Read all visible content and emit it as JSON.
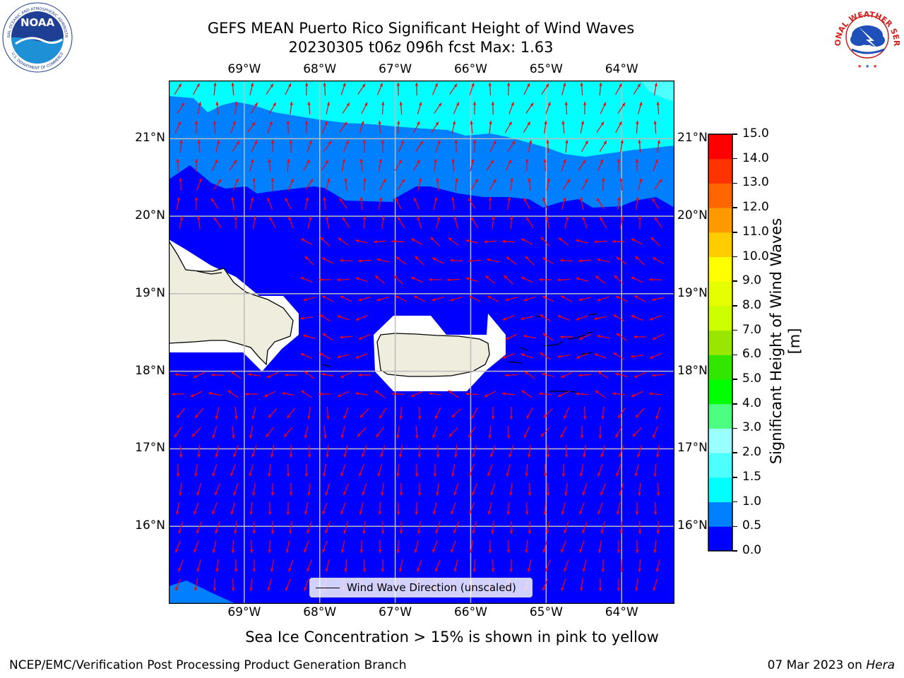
{
  "title": {
    "line1": "GEFS MEAN Puerto Rico Significant Height of Wind Waves",
    "line2": "20230305 t06z 096h fcst   Max: 1.63"
  },
  "map": {
    "lon_labels": [
      "69°W",
      "68°W",
      "67°W",
      "66°W",
      "65°W",
      "64°W"
    ],
    "lat_labels": [
      "21°N",
      "20°N",
      "19°N",
      "18°N",
      "17°N",
      "16°N"
    ],
    "lon_range": [
      -70.0,
      -63.3
    ],
    "lat_range": [
      15.0,
      21.75
    ],
    "legend_label": "Wind Wave Direction (unscaled)",
    "arrow_color": "#ff0000",
    "land_color": "#efedde"
  },
  "colorbar": {
    "label": "Significant Height of Wind Waves [m]",
    "ticks": [
      "0.0",
      "0.5",
      "1.0",
      "1.5",
      "2.0",
      "3.0",
      "4.0",
      "5.0",
      "6.0",
      "7.0",
      "8.0",
      "9.0",
      "10.0",
      "11.0",
      "12.0",
      "13.0",
      "14.0",
      "15.0"
    ],
    "colors": [
      "#0000ff",
      "#0080ff",
      "#00ffff",
      "#4dffff",
      "#99ffff",
      "#4dff80",
      "#00ff00",
      "#33e600",
      "#99e600",
      "#ccff00",
      "#e6ff00",
      "#ffff00",
      "#ffcc00",
      "#ff9900",
      "#ff6600",
      "#ff3300",
      "#ff0000"
    ]
  },
  "bottom_note": "Sea Ice Concentration > 15% is shown in pink to yellow",
  "footer": {
    "left": "NCEP/EMC/Verification Post Processing Product Generation Branch",
    "right_date": "07 Mar 2023 on ",
    "right_machine": "Hera"
  },
  "logos": {
    "noaa_text": "NOAA",
    "noaa_ring_top": "NATIONAL OCEANIC AND ATMOSPHERIC ADMINISTRATION",
    "noaa_ring_bottom": "U.S. DEPARTMENT OF COMMERCE",
    "nws_ring": "NATIONAL WEATHER SERVICE"
  }
}
